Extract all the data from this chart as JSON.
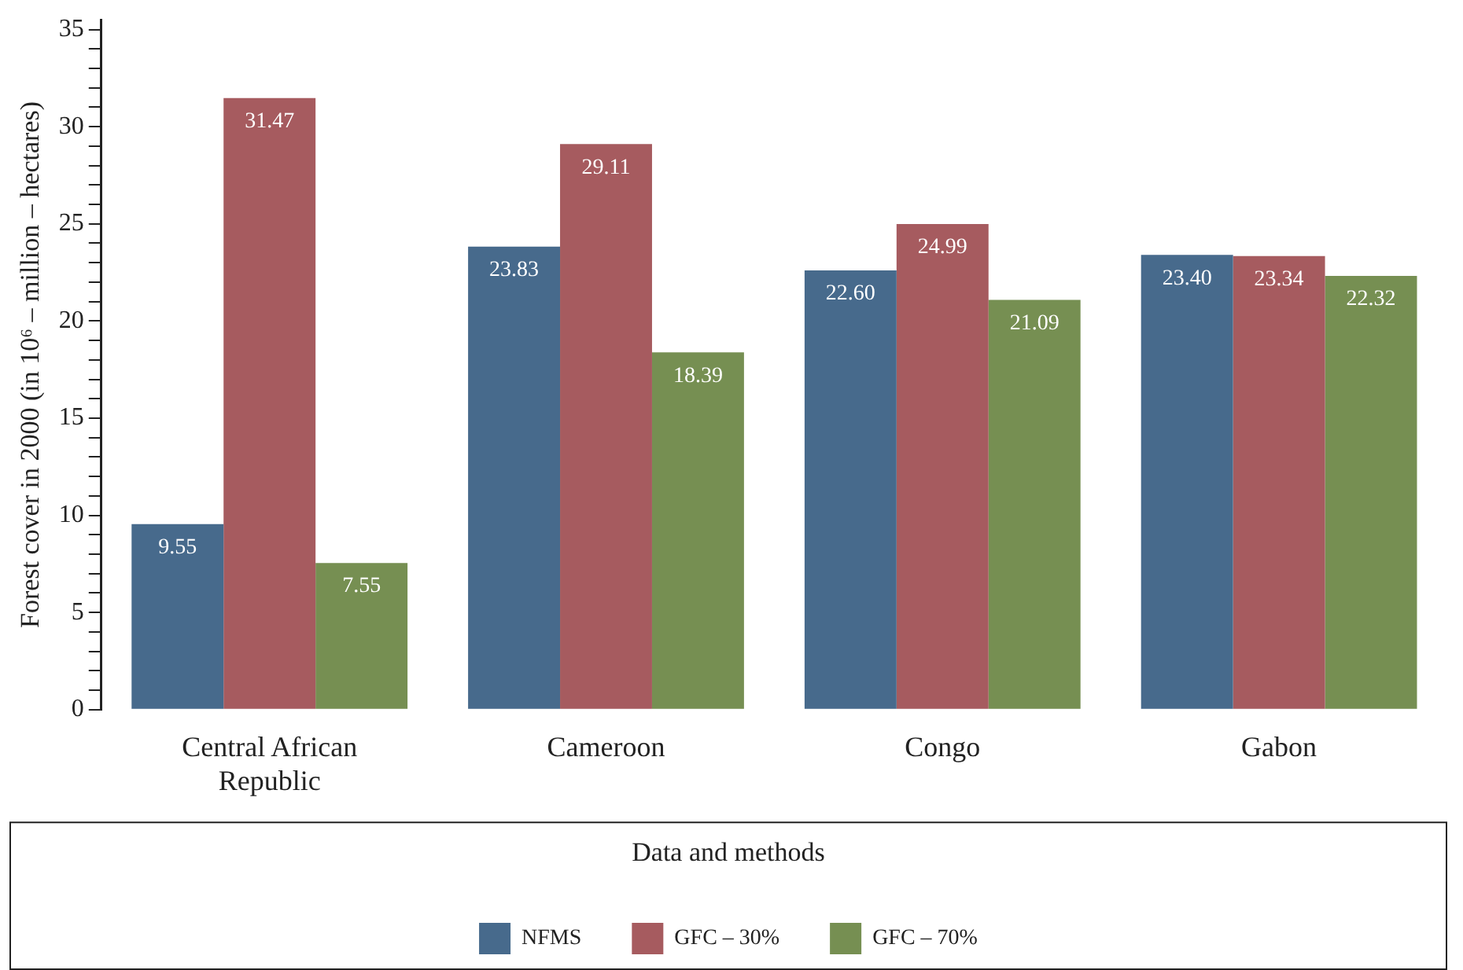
{
  "chart_data": {
    "type": "bar",
    "ylabel": "Forest cover in 2000 (in 10⁶ – million – hectares)",
    "legend_title": "Data and methods",
    "categories": [
      "Central African Republic",
      "Cameroon",
      "Congo",
      "Gabon"
    ],
    "series": [
      {
        "name": "NFMS",
        "color": "#476a8c",
        "values": [
          9.55,
          23.83,
          22.6,
          23.4
        ],
        "value_labels": [
          "9.55",
          "23.83",
          "22.60",
          "23.40"
        ]
      },
      {
        "name": "GFC – 30%",
        "color": "#a65b5f",
        "values": [
          31.47,
          29.11,
          24.99,
          23.34
        ],
        "value_labels": [
          "31.47",
          "29.11",
          "24.99",
          "23.34"
        ]
      },
      {
        "name": "GFC – 70%",
        "color": "#768f52",
        "values": [
          7.55,
          18.39,
          21.09,
          22.32
        ],
        "value_labels": [
          "7.55",
          "18.39",
          "21.09",
          "22.32"
        ]
      }
    ],
    "ylim": [
      0,
      35.5
    ],
    "yticks": [
      0,
      {
        "value": 1,
        "label": null
      },
      {
        "value": 2,
        "label": null
      },
      {
        "value": 3,
        "label": null
      },
      {
        "value": 4,
        "label": null
      },
      5,
      {
        "value": 6,
        "label": null
      },
      {
        "value": 7,
        "label": null
      },
      {
        "value": 8,
        "label": null
      },
      {
        "value": 9,
        "label": null
      },
      10,
      {
        "value": 11,
        "label": null
      },
      {
        "value": 12,
        "label": null
      },
      {
        "value": 13,
        "label": null
      },
      {
        "value": 14,
        "label": null
      },
      15,
      {
        "value": 16,
        "label": null
      },
      {
        "value": 17,
        "label": null
      },
      {
        "value": 18,
        "label": null
      },
      {
        "value": 19,
        "label": null
      },
      20,
      {
        "value": 21,
        "label": null
      },
      {
        "value": 22,
        "label": null
      },
      {
        "value": 23,
        "label": null
      },
      {
        "value": 24,
        "label": null
      },
      25,
      {
        "value": 26,
        "label": null
      },
      {
        "value": 27,
        "label": null
      },
      {
        "value": 28,
        "label": null
      },
      {
        "value": 29,
        "label": null
      },
      30,
      {
        "value": 31,
        "label": null
      },
      {
        "value": 32,
        "label": null
      },
      {
        "value": 33,
        "label": null
      },
      {
        "value": 34,
        "label": null
      },
      35
    ],
    "grid": false,
    "legend": "bottom"
  }
}
